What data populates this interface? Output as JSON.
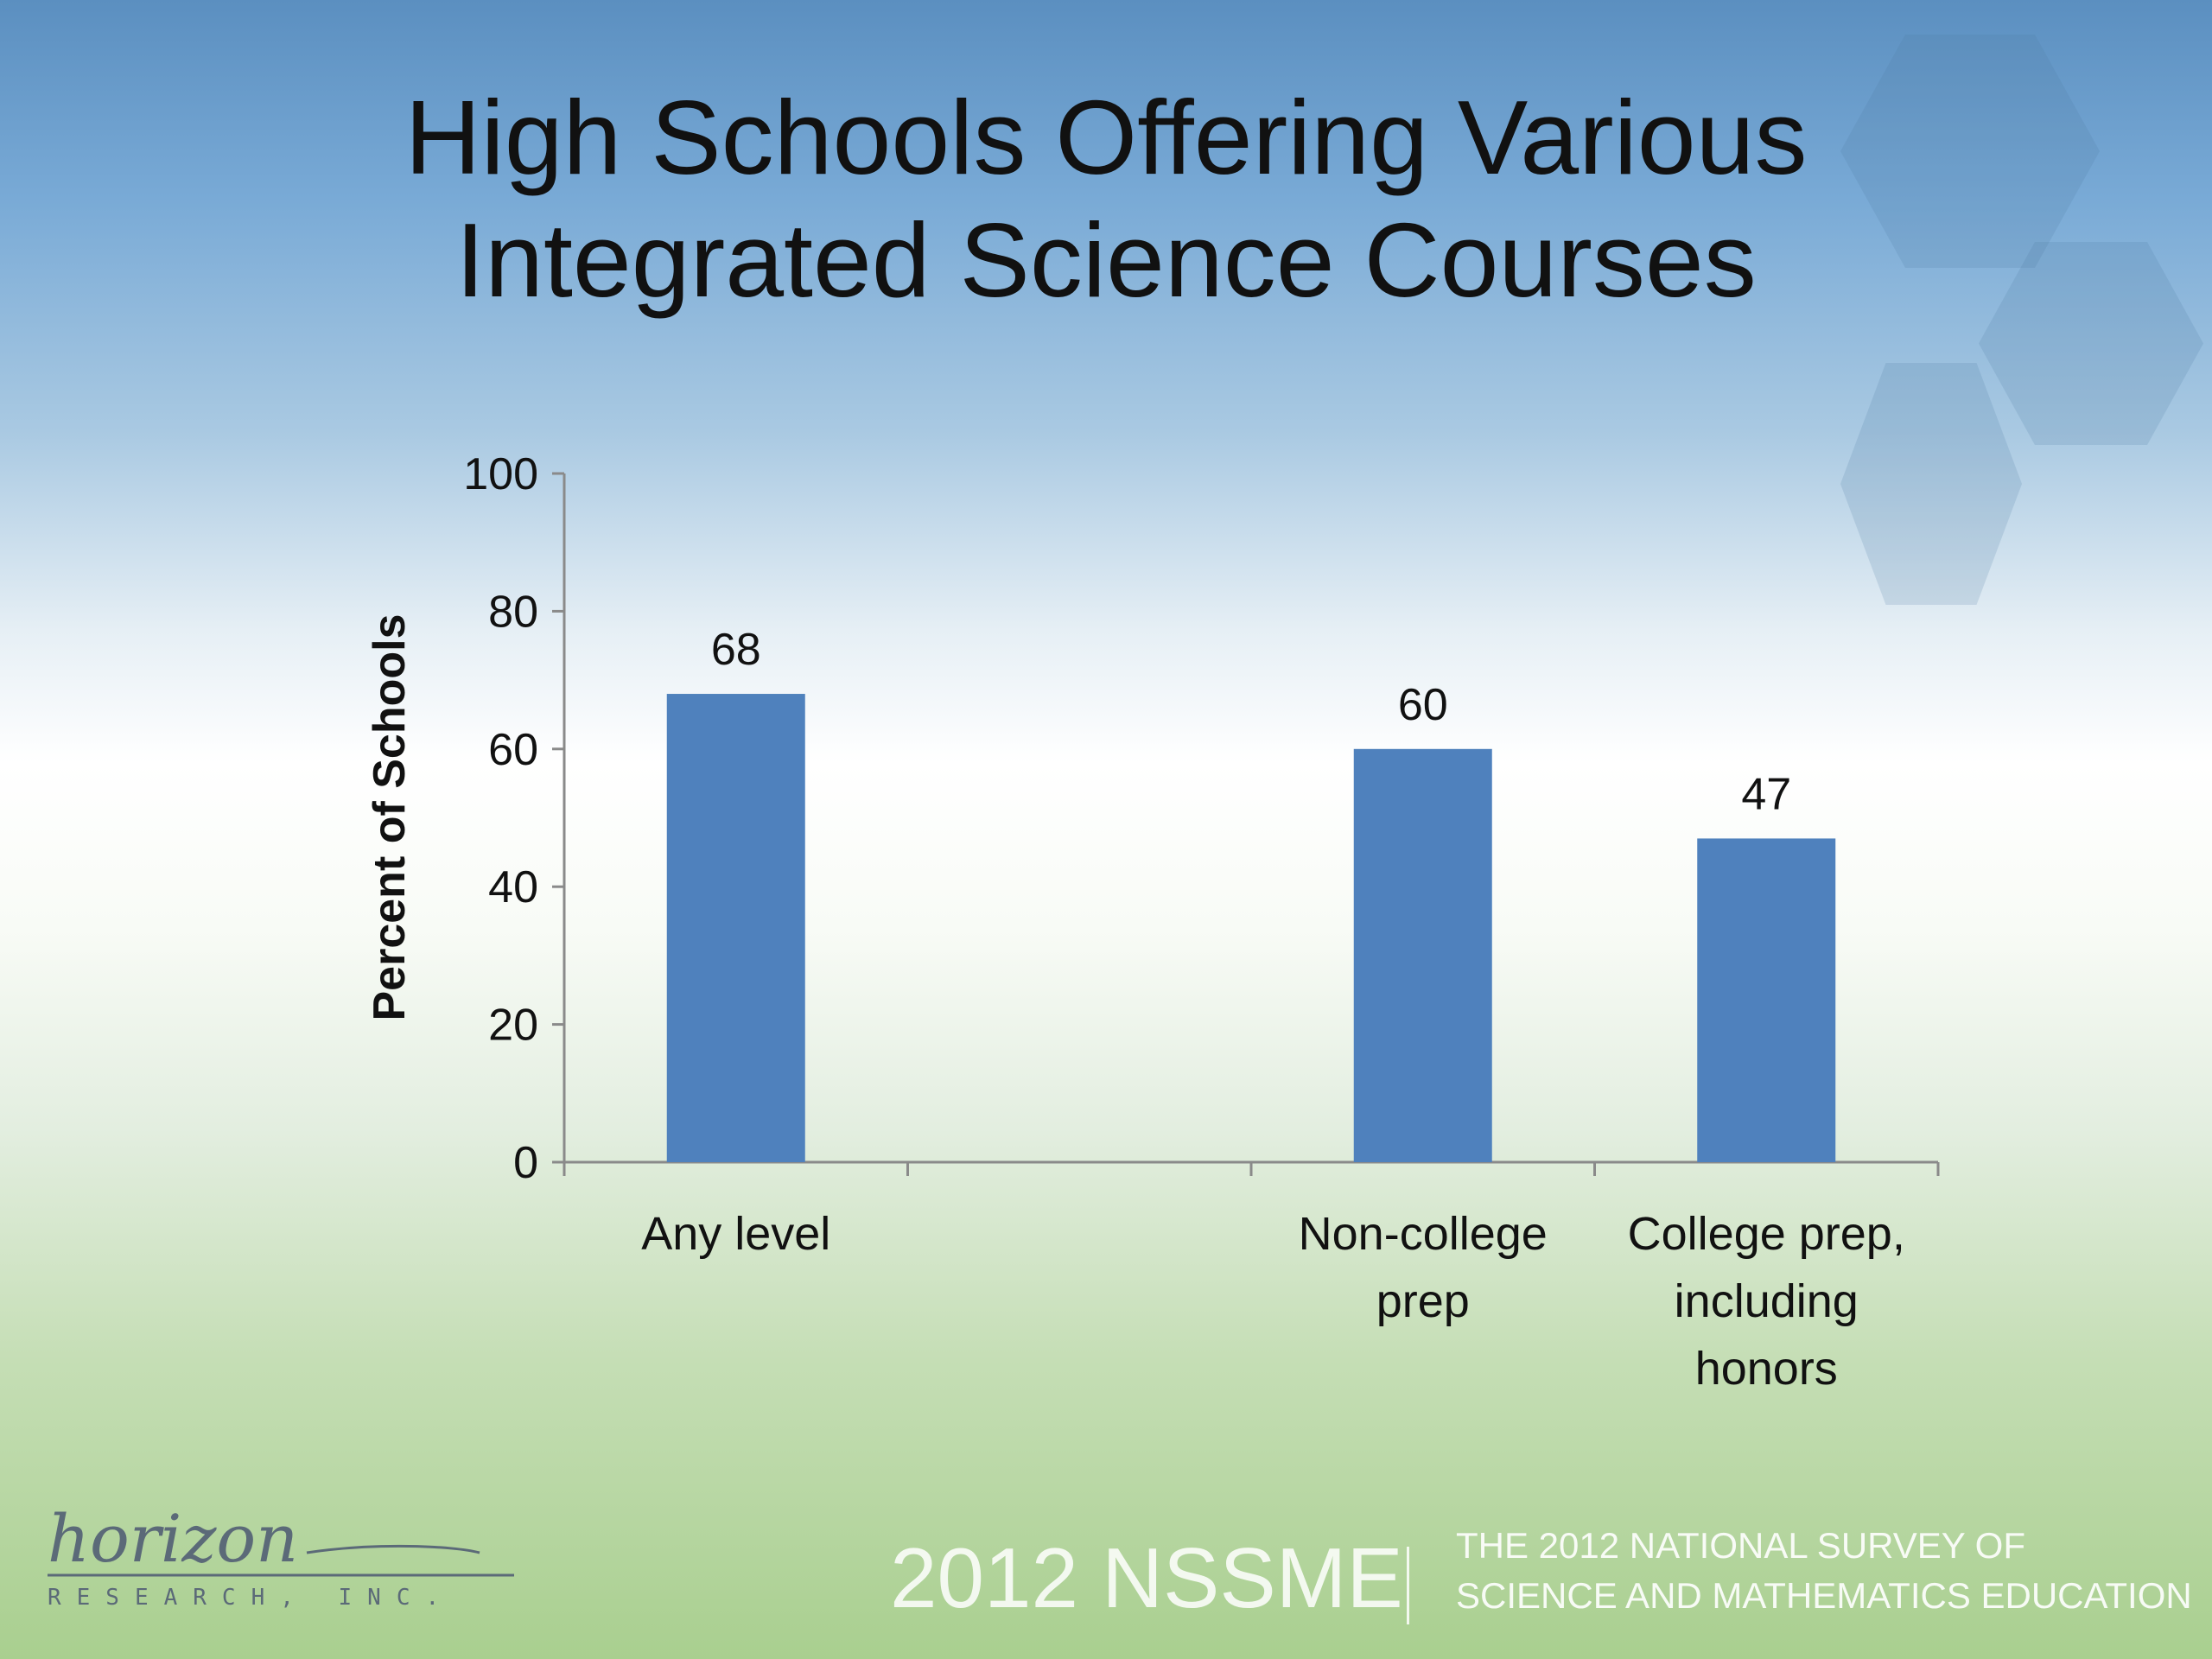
{
  "title_line1": "High Schools Offering Various",
  "title_line2": "Integrated Science Courses",
  "chart_data": {
    "type": "bar",
    "categories": [
      "Any level",
      "",
      "Non-college prep",
      "College prep, including honors"
    ],
    "category_lines": [
      [
        "Any level"
      ],
      [],
      [
        "Non-college",
        "prep"
      ],
      [
        "College prep,",
        "including",
        "honors"
      ]
    ],
    "values": [
      68,
      null,
      60,
      47
    ],
    "value_labels": [
      "68",
      "",
      "60",
      "47"
    ],
    "ylabel": "Percent of Schools",
    "ylim": [
      0,
      100
    ],
    "yticks": [
      0,
      20,
      40,
      60,
      80,
      100
    ],
    "bar_color": "#4f81bd"
  },
  "footer": {
    "nssme": "2012 NSSME",
    "survey_line1": "THE 2012 NATIONAL SURVEY OF",
    "survey_line2": "SCIENCE AND MATHEMATICS EDUCATION",
    "logo_script": "horizon",
    "logo_sub": "RESEARCH, INC."
  }
}
